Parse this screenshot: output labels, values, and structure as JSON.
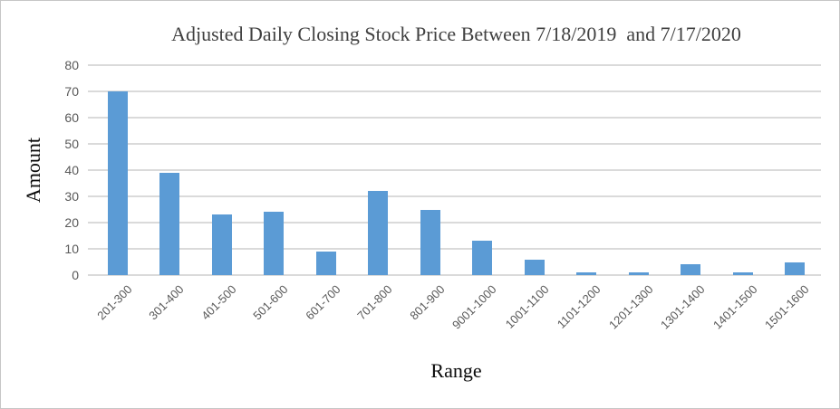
{
  "window": {
    "background": "#ffffff",
    "border_color": "#c6c6c6"
  },
  "chart_data": {
    "type": "bar",
    "title": "Adjusted Daily Closing Stock Price Between 7/18/2019  and 7/17/2020",
    "xlabel": "Range",
    "ylabel": "Amount",
    "categories": [
      "201-300",
      "301-400",
      "401-500",
      "501-600",
      "601-700",
      "701-800",
      "801-900",
      "9001-1000",
      "1001-1100",
      "1101-1200",
      "1201-1300",
      "1301-1400",
      "1401-1500",
      "1501-1600"
    ],
    "values": [
      70,
      39,
      23,
      24,
      9,
      32,
      25,
      13,
      6,
      1,
      1,
      4,
      1,
      5
    ],
    "ylim": [
      0,
      80
    ],
    "yticks": [
      0,
      10,
      20,
      30,
      40,
      50,
      60,
      70,
      80
    ],
    "grid": "horizontal",
    "legend": "none",
    "colors": {
      "bar": "#5B9BD5",
      "gridline": "#DADADA",
      "tick_text": "#595959",
      "title_text": "#404040",
      "axis_label_text": "#0A0A0A"
    }
  }
}
